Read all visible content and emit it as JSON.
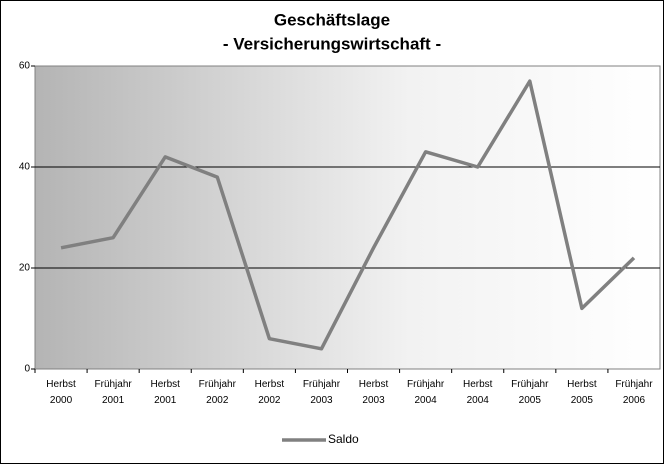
{
  "chart_data": {
    "type": "line",
    "title": [
      "Geschäftslage",
      "- Versicherungswirtschaft -"
    ],
    "categories": [
      "Herbst 2000",
      "Frühjahr 2001",
      "Herbst 2001",
      "Frühjahr 2002",
      "Herbst 2002",
      "Frühjahr 2003",
      "Herbst 2003",
      "Frühjahr 2004",
      "Herbst 2004",
      "Frühjahr 2005",
      "Herbst 2005",
      "Frühjahr 2006"
    ],
    "series": [
      {
        "name": "Saldo",
        "color": "#808080",
        "values": [
          24,
          26,
          42,
          38,
          6,
          4,
          24,
          43,
          40,
          57,
          12,
          22
        ]
      }
    ],
    "ylim": [
      0,
      60
    ],
    "yticks": [
      0,
      20,
      40,
      60
    ],
    "grid": true,
    "legend": "bottom"
  }
}
